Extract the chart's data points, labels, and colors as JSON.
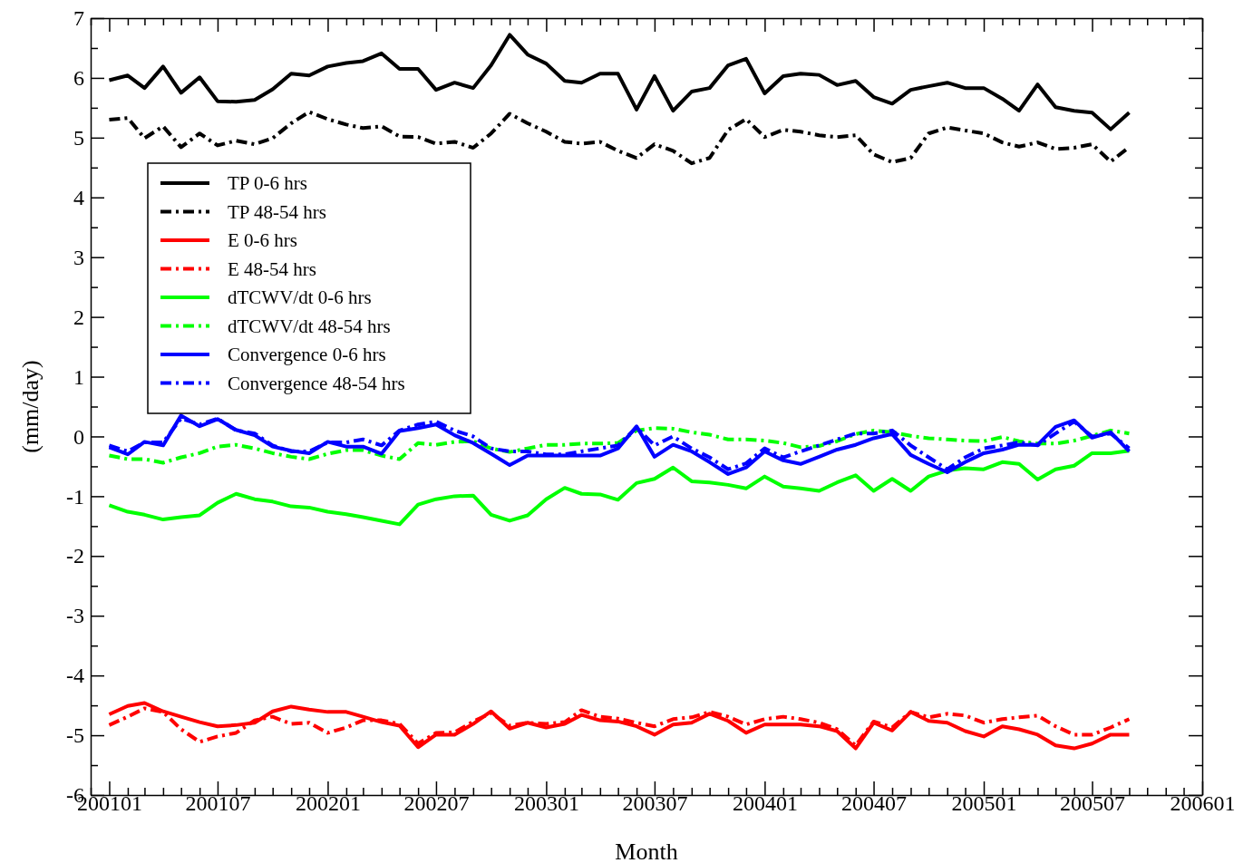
{
  "chart_data": {
    "type": "line",
    "xlabel": "Month",
    "ylabel": "(mm/day)",
    "legend": "top left",
    "marker": "none",
    "grid": false,
    "xlim": [
      "2000-12",
      "2006-01"
    ],
    "ylim": [
      -6,
      7
    ],
    "xticks": [
      {
        "value": "2000-12",
        "label": null
      },
      {
        "value": "2001-01",
        "label": "200101"
      },
      {
        "value": "2001-02",
        "label": null
      },
      {
        "value": "2001-03",
        "label": null
      },
      {
        "value": "2001-04",
        "label": null
      },
      {
        "value": "2001-05",
        "label": null
      },
      {
        "value": "2001-06",
        "label": null
      },
      {
        "value": "2001-07",
        "label": "200107"
      },
      {
        "value": "2001-08",
        "label": null
      },
      {
        "value": "2001-09",
        "label": null
      },
      {
        "value": "2001-10",
        "label": null
      },
      {
        "value": "2001-11",
        "label": null
      },
      {
        "value": "2001-12",
        "label": null
      },
      {
        "value": "2002-01",
        "label": "200201"
      },
      {
        "value": "2002-02",
        "label": null
      },
      {
        "value": "2002-03",
        "label": null
      },
      {
        "value": "2002-04",
        "label": null
      },
      {
        "value": "2002-05",
        "label": null
      },
      {
        "value": "2002-06",
        "label": null
      },
      {
        "value": "2002-07",
        "label": "200207"
      },
      {
        "value": "2002-08",
        "label": null
      },
      {
        "value": "2002-09",
        "label": null
      },
      {
        "value": "2002-10",
        "label": null
      },
      {
        "value": "2002-11",
        "label": null
      },
      {
        "value": "2002-12",
        "label": null
      },
      {
        "value": "2003-01",
        "label": "200301"
      },
      {
        "value": "2003-02",
        "label": null
      },
      {
        "value": "2003-03",
        "label": null
      },
      {
        "value": "2003-04",
        "label": null
      },
      {
        "value": "2003-05",
        "label": null
      },
      {
        "value": "2003-06",
        "label": null
      },
      {
        "value": "2003-07",
        "label": "200307"
      },
      {
        "value": "2003-08",
        "label": null
      },
      {
        "value": "2003-09",
        "label": null
      },
      {
        "value": "2003-10",
        "label": null
      },
      {
        "value": "2003-11",
        "label": null
      },
      {
        "value": "2003-12",
        "label": null
      },
      {
        "value": "2004-01",
        "label": "200401"
      },
      {
        "value": "2004-02",
        "label": null
      },
      {
        "value": "2004-03",
        "label": null
      },
      {
        "value": "2004-04",
        "label": null
      },
      {
        "value": "2004-05",
        "label": null
      },
      {
        "value": "2004-06",
        "label": null
      },
      {
        "value": "2004-07",
        "label": "200407"
      },
      {
        "value": "2004-08",
        "label": null
      },
      {
        "value": "2004-09",
        "label": null
      },
      {
        "value": "2004-10",
        "label": null
      },
      {
        "value": "2004-11",
        "label": null
      },
      {
        "value": "2004-12",
        "label": null
      },
      {
        "value": "2005-01",
        "label": "200501"
      },
      {
        "value": "2005-02",
        "label": null
      },
      {
        "value": "2005-03",
        "label": null
      },
      {
        "value": "2005-04",
        "label": null
      },
      {
        "value": "2005-05",
        "label": null
      },
      {
        "value": "2005-06",
        "label": null
      },
      {
        "value": "2005-07",
        "label": "200507"
      },
      {
        "value": "2005-08",
        "label": null
      },
      {
        "value": "2005-09",
        "label": null
      },
      {
        "value": "2005-10",
        "label": null
      },
      {
        "value": "2005-11",
        "label": null
      },
      {
        "value": "2005-12",
        "label": null
      },
      {
        "value": "2006-01",
        "label": "200601"
      }
    ],
    "yticks": [
      -6,
      {
        "value": -5.5,
        "label": null
      },
      -5,
      {
        "value": -4.5,
        "label": null
      },
      -4,
      {
        "value": -3.5,
        "label": null
      },
      -3,
      {
        "value": -2.5,
        "label": null
      },
      -2,
      {
        "value": -1.5,
        "label": null
      },
      -1,
      {
        "value": -0.5,
        "label": null
      },
      0,
      {
        "value": 0.5,
        "label": null
      },
      1,
      {
        "value": 1.5,
        "label": null
      },
      2,
      {
        "value": 2.5,
        "label": null
      },
      3,
      {
        "value": 3.5,
        "label": null
      },
      4,
      {
        "value": 4.5,
        "label": null
      },
      5,
      {
        "value": 5.5,
        "label": null
      },
      6,
      {
        "value": 6.5,
        "label": null
      },
      7
    ],
    "x": [
      "2001-01",
      "2001-02",
      "2001-03",
      "2001-04",
      "2001-05",
      "2001-06",
      "2001-07",
      "2001-08",
      "2001-09",
      "2001-10",
      "2001-11",
      "2001-12",
      "2002-01",
      "2002-02",
      "2002-03",
      "2002-04",
      "2002-05",
      "2002-06",
      "2002-07",
      "2002-08",
      "2002-09",
      "2002-10",
      "2002-11",
      "2002-12",
      "2003-01",
      "2003-02",
      "2003-03",
      "2003-04",
      "2003-05",
      "2003-06",
      "2003-07",
      "2003-08",
      "2003-09",
      "2003-10",
      "2003-11",
      "2003-12",
      "2004-01",
      "2004-02",
      "2004-03",
      "2004-04",
      "2004-05",
      "2004-06",
      "2004-07",
      "2004-08",
      "2004-09",
      "2004-10",
      "2004-11",
      "2004-12",
      "2005-01",
      "2005-02",
      "2005-03",
      "2005-04",
      "2005-05",
      "2005-06",
      "2005-07",
      "2005-08",
      "2005-09"
    ],
    "series": [
      {
        "name": "TP 0-6 hrs",
        "color": "#000000",
        "line_style": "solid",
        "values": [
          5.96,
          6.04,
          5.83,
          6.19,
          5.75,
          6.01,
          5.61,
          5.6,
          5.63,
          5.81,
          6.07,
          6.04,
          6.19,
          6.25,
          6.28,
          6.41,
          6.15,
          6.15,
          5.8,
          5.92,
          5.83,
          6.21,
          6.72,
          6.39,
          6.24,
          5.95,
          5.92,
          6.07,
          6.07,
          5.47,
          6.03,
          5.45,
          5.77,
          5.83,
          6.21,
          6.32,
          5.74,
          6.03,
          6.07,
          6.05,
          5.88,
          5.95,
          5.68,
          5.57,
          5.8,
          5.86,
          5.92,
          5.83,
          5.83,
          5.65,
          5.45,
          5.89,
          5.51,
          5.45,
          5.42,
          5.14,
          5.42
        ]
      },
      {
        "name": "TP 48-54 hrs",
        "color": "#000000",
        "line_style": "dashed",
        "values": [
          5.3,
          5.33,
          4.99,
          5.19,
          4.84,
          5.07,
          4.87,
          4.95,
          4.89,
          4.99,
          5.24,
          5.43,
          5.31,
          5.22,
          5.16,
          5.19,
          5.02,
          5.01,
          4.9,
          4.93,
          4.83,
          5.07,
          5.4,
          5.24,
          5.1,
          4.93,
          4.9,
          4.93,
          4.78,
          4.66,
          4.89,
          4.78,
          4.57,
          4.66,
          5.13,
          5.31,
          5.01,
          5.13,
          5.1,
          5.04,
          5.01,
          5.04,
          4.72,
          4.59,
          4.66,
          5.07,
          5.17,
          5.12,
          5.07,
          4.92,
          4.85,
          4.92,
          4.81,
          4.83,
          4.89,
          4.6,
          4.84
        ]
      },
      {
        "name": "E 0-6 hrs",
        "color": "#ff0000",
        "line_style": "solid",
        "values": [
          -4.65,
          -4.51,
          -4.46,
          -4.6,
          -4.69,
          -4.78,
          -4.85,
          -4.83,
          -4.79,
          -4.6,
          -4.52,
          -4.57,
          -4.61,
          -4.61,
          -4.69,
          -4.78,
          -4.84,
          -5.2,
          -4.99,
          -4.99,
          -4.81,
          -4.6,
          -4.89,
          -4.79,
          -4.87,
          -4.81,
          -4.66,
          -4.75,
          -4.77,
          -4.85,
          -4.99,
          -4.82,
          -4.79,
          -4.64,
          -4.76,
          -4.96,
          -4.82,
          -4.82,
          -4.82,
          -4.85,
          -4.93,
          -5.22,
          -4.79,
          -4.92,
          -4.61,
          -4.76,
          -4.79,
          -4.93,
          -5.02,
          -4.85,
          -4.9,
          -4.99,
          -5.17,
          -5.22,
          -5.14,
          -4.99,
          -4.99
        ]
      },
      {
        "name": "E 48-54 hrs",
        "color": "#ff0000",
        "line_style": "dashed",
        "values": [
          -4.83,
          -4.69,
          -4.55,
          -4.61,
          -4.9,
          -5.11,
          -5.02,
          -4.96,
          -4.75,
          -4.69,
          -4.81,
          -4.79,
          -4.96,
          -4.87,
          -4.75,
          -4.75,
          -4.81,
          -5.14,
          -4.96,
          -4.95,
          -4.77,
          -4.63,
          -4.84,
          -4.79,
          -4.81,
          -4.78,
          -4.58,
          -4.69,
          -4.72,
          -4.79,
          -4.85,
          -4.73,
          -4.7,
          -4.61,
          -4.69,
          -4.82,
          -4.73,
          -4.69,
          -4.73,
          -4.79,
          -4.9,
          -5.17,
          -4.77,
          -4.87,
          -4.61,
          -4.7,
          -4.64,
          -4.67,
          -4.79,
          -4.73,
          -4.7,
          -4.67,
          -4.85,
          -4.99,
          -4.99,
          -4.87,
          -4.73
        ]
      },
      {
        "name": "dTCWV/dt 0-6 hrs",
        "color": "#00ff00",
        "line_style": "solid",
        "values": [
          -1.15,
          -1.26,
          -1.31,
          -1.39,
          -1.35,
          -1.32,
          -1.11,
          -0.96,
          -1.05,
          -1.09,
          -1.17,
          -1.19,
          -1.26,
          -1.3,
          -1.35,
          -1.41,
          -1.47,
          -1.14,
          -1.05,
          -1.0,
          -0.99,
          -1.31,
          -1.41,
          -1.32,
          -1.05,
          -0.86,
          -0.96,
          -0.97,
          -1.06,
          -0.78,
          -0.71,
          -0.52,
          -0.75,
          -0.77,
          -0.81,
          -0.87,
          -0.67,
          -0.84,
          -0.87,
          -0.91,
          -0.77,
          -0.65,
          -0.91,
          -0.71,
          -0.91,
          -0.67,
          -0.57,
          -0.53,
          -0.55,
          -0.43,
          -0.46,
          -0.72,
          -0.55,
          -0.49,
          -0.28,
          -0.28,
          -0.24
        ]
      },
      {
        "name": "dTCWV/dt 48-54 hrs",
        "color": "#00ff00",
        "line_style": "dashed",
        "values": [
          -0.32,
          -0.38,
          -0.38,
          -0.44,
          -0.35,
          -0.28,
          -0.17,
          -0.14,
          -0.2,
          -0.28,
          -0.34,
          -0.38,
          -0.29,
          -0.23,
          -0.23,
          -0.32,
          -0.38,
          -0.11,
          -0.14,
          -0.09,
          -0.08,
          -0.2,
          -0.26,
          -0.2,
          -0.14,
          -0.14,
          -0.12,
          -0.12,
          -0.11,
          0.1,
          0.14,
          0.13,
          0.07,
          0.03,
          -0.05,
          -0.05,
          -0.07,
          -0.11,
          -0.18,
          -0.16,
          -0.08,
          0.04,
          0.1,
          0.07,
          0.01,
          -0.03,
          -0.05,
          -0.07,
          -0.08,
          -0.01,
          -0.08,
          -0.12,
          -0.12,
          -0.07,
          0.01,
          0.1,
          0.05
        ]
      },
      {
        "name": "Convergence 0-6 hrs",
        "color": "#0000ff",
        "line_style": "solid",
        "values": [
          -0.18,
          -0.3,
          -0.09,
          -0.15,
          0.35,
          0.17,
          0.29,
          0.11,
          0.02,
          -0.17,
          -0.24,
          -0.28,
          -0.09,
          -0.17,
          -0.17,
          -0.29,
          0.09,
          0.14,
          0.2,
          0.02,
          -0.11,
          -0.29,
          -0.48,
          -0.32,
          -0.32,
          -0.32,
          -0.32,
          -0.32,
          -0.2,
          0.17,
          -0.34,
          -0.14,
          -0.25,
          -0.43,
          -0.63,
          -0.52,
          -0.25,
          -0.4,
          -0.46,
          -0.34,
          -0.22,
          -0.14,
          -0.03,
          0.04,
          -0.31,
          -0.46,
          -0.6,
          -0.43,
          -0.28,
          -0.22,
          -0.14,
          -0.14,
          0.16,
          0.27,
          -0.02,
          0.07,
          -0.25
        ]
      },
      {
        "name": "Convergence 48-54 hrs",
        "color": "#0000ff",
        "line_style": "dashed",
        "values": [
          -0.15,
          -0.25,
          -0.1,
          -0.1,
          0.3,
          0.2,
          0.3,
          0.1,
          0.05,
          -0.15,
          -0.25,
          -0.25,
          -0.1,
          -0.1,
          -0.05,
          -0.15,
          0.1,
          0.2,
          0.25,
          0.1,
          0.0,
          -0.2,
          -0.25,
          -0.25,
          -0.3,
          -0.3,
          -0.25,
          -0.2,
          -0.15,
          0.15,
          -0.15,
          0.0,
          -0.2,
          -0.35,
          -0.55,
          -0.45,
          -0.2,
          -0.35,
          -0.25,
          -0.15,
          -0.05,
          0.05,
          0.05,
          0.1,
          -0.15,
          -0.35,
          -0.55,
          -0.35,
          -0.2,
          -0.15,
          -0.1,
          -0.15,
          0.05,
          0.25,
          0.0,
          0.05,
          -0.2
        ]
      }
    ]
  }
}
